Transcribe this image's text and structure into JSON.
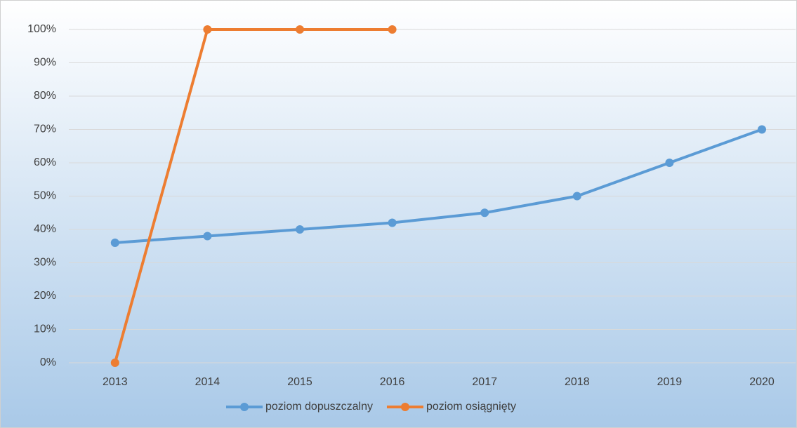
{
  "chart_data": {
    "type": "line",
    "categories": [
      "2013",
      "2014",
      "2015",
      "2016",
      "2017",
      "2018",
      "2019",
      "2020"
    ],
    "series": [
      {
        "name": "poziom dopuszczalny",
        "color": "#5b9bd5",
        "values": [
          36,
          38,
          40,
          42,
          45,
          50,
          60,
          70
        ]
      },
      {
        "name": "poziom osiągnięty",
        "color": "#ed7d31",
        "values": [
          0,
          100,
          100,
          100,
          null,
          null,
          null,
          null
        ]
      }
    ],
    "ylim": [
      0,
      100
    ],
    "yticks": [
      {
        "value": 0,
        "label": "0%"
      },
      {
        "value": 10,
        "label": "10%"
      },
      {
        "value": 20,
        "label": "20%"
      },
      {
        "value": 30,
        "label": "30%"
      },
      {
        "value": 40,
        "label": "40%"
      },
      {
        "value": 50,
        "label": "50%"
      },
      {
        "value": 60,
        "label": "60%"
      },
      {
        "value": 70,
        "label": "70%"
      },
      {
        "value": 80,
        "label": "80%"
      },
      {
        "value": 90,
        "label": "90%"
      },
      {
        "value": 100,
        "label": "100%"
      }
    ],
    "grid": true,
    "legend": "bottom"
  }
}
